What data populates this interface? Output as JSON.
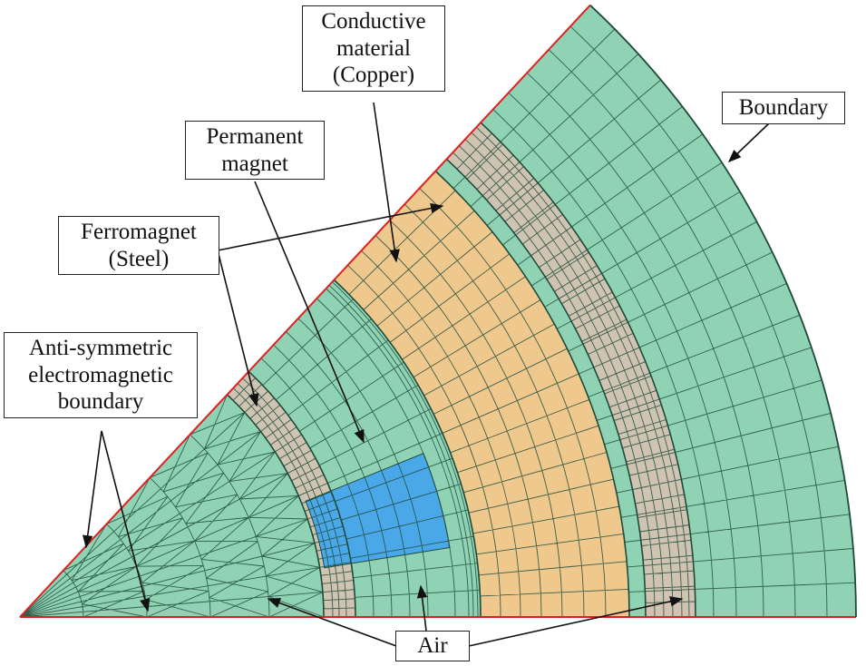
{
  "labels": {
    "conductive": [
      "Conductive",
      "material",
      "(Copper)"
    ],
    "boundary": [
      "Boundary"
    ],
    "permanent_magnet": [
      "Permanent",
      "magnet"
    ],
    "ferromagnet": [
      "Ferromagnet",
      "(Steel)"
    ],
    "anti_symmetric": [
      "Anti-symmetric",
      "electromagnetic",
      "boundary"
    ],
    "air": [
      "Air"
    ]
  },
  "colors": {
    "air": "#8fd3b4",
    "steel": "#cfc3b1",
    "magnet": "#4aa8e8",
    "copper": "#efc88e",
    "mesh": "#1f4a3a",
    "outer_boundary": "#e02020",
    "leader": "#111111"
  }
}
